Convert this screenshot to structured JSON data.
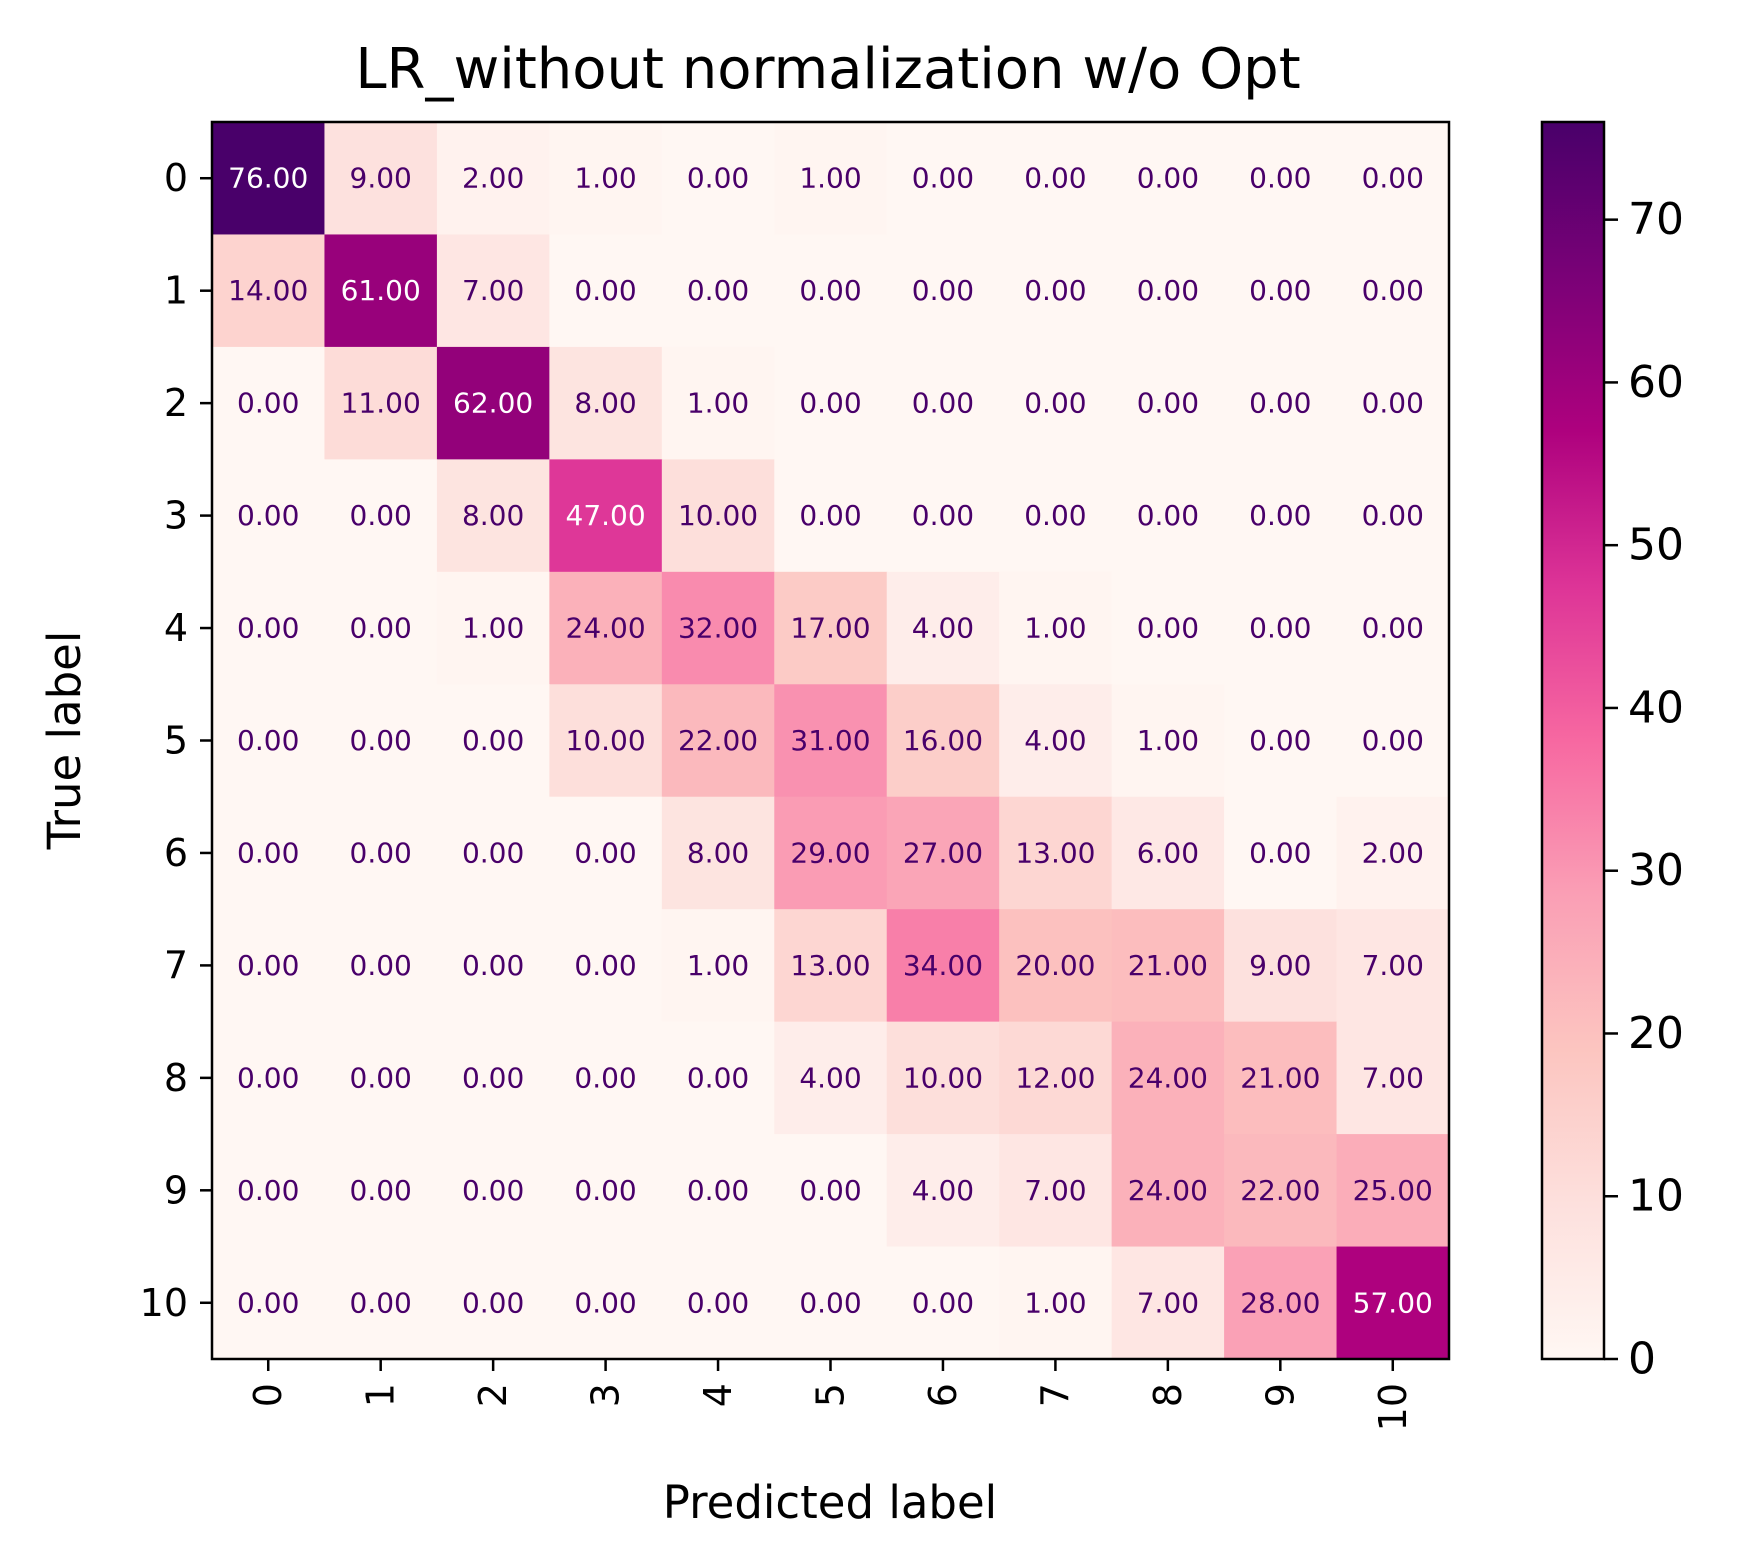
{
  "chart_data": {
    "type": "heatmap",
    "title": "LR_without normalization w/o Opt",
    "xlabel": "Predicted label",
    "ylabel": "True label",
    "x_categories": [
      "0",
      "1",
      "2",
      "3",
      "4",
      "5",
      "6",
      "7",
      "8",
      "9",
      "10"
    ],
    "y_categories": [
      "0",
      "1",
      "2",
      "3",
      "4",
      "5",
      "6",
      "7",
      "8",
      "9",
      "10"
    ],
    "value_format": "2 decimals",
    "colormap": "RdPu",
    "colormap_stops": [
      "#fff7f3",
      "#fde0dd",
      "#fcc5c0",
      "#fa9fb5",
      "#f768a1",
      "#dd3497",
      "#ae017e",
      "#7a0177",
      "#49006a"
    ],
    "text_color_dark_cells": "#ffffff",
    "text_color_light_cells": "#49006a",
    "vmin": 0,
    "vmax": 76,
    "colorbar_ticks": [
      0,
      10,
      20,
      30,
      40,
      50,
      60,
      70
    ],
    "grid": false,
    "values": [
      [
        76,
        9,
        2,
        1,
        0,
        1,
        0,
        0,
        0,
        0,
        0
      ],
      [
        14,
        61,
        7,
        0,
        0,
        0,
        0,
        0,
        0,
        0,
        0
      ],
      [
        0,
        11,
        62,
        8,
        1,
        0,
        0,
        0,
        0,
        0,
        0
      ],
      [
        0,
        0,
        8,
        47,
        10,
        0,
        0,
        0,
        0,
        0,
        0
      ],
      [
        0,
        0,
        1,
        24,
        32,
        17,
        4,
        1,
        0,
        0,
        0
      ],
      [
        0,
        0,
        0,
        10,
        22,
        31,
        16,
        4,
        1,
        0,
        0
      ],
      [
        0,
        0,
        0,
        0,
        8,
        29,
        27,
        13,
        6,
        0,
        2
      ],
      [
        0,
        0,
        0,
        0,
        1,
        13,
        34,
        20,
        21,
        9,
        7
      ],
      [
        0,
        0,
        0,
        0,
        0,
        4,
        10,
        12,
        24,
        21,
        7
      ],
      [
        0,
        0,
        0,
        0,
        0,
        0,
        4,
        7,
        24,
        22,
        25
      ],
      [
        0,
        0,
        0,
        0,
        0,
        0,
        0,
        1,
        7,
        28,
        57
      ]
    ]
  }
}
